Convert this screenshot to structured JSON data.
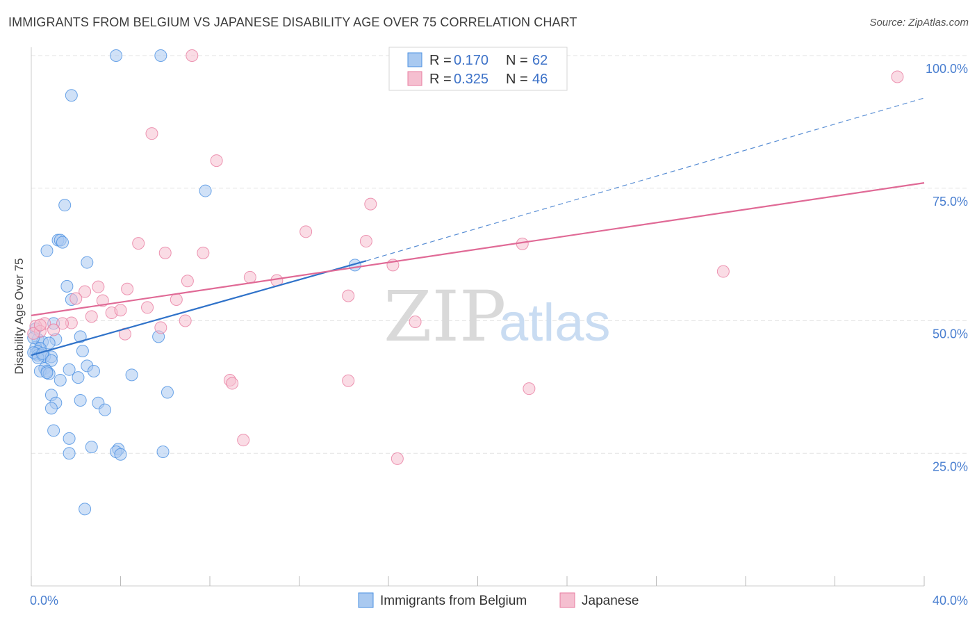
{
  "title": "IMMIGRANTS FROM BELGIUM VS JAPANESE DISABILITY AGE OVER 75 CORRELATION CHART",
  "source": "Source: ZipAtlas.com",
  "watermark": {
    "zip": "ZIP",
    "atlas": "atlas"
  },
  "legend": {
    "rows": [
      {
        "r_label": "R =",
        "r_value": "0.170",
        "n_label": "N =",
        "n_value": "62"
      },
      {
        "r_label": "R =",
        "r_value": "0.325",
        "n_label": "N =",
        "n_value": "46"
      }
    ]
  },
  "bottom_legend": [
    "Immigrants from Belgium",
    "Japanese"
  ],
  "colors": {
    "blue": "#4a90e2",
    "blue_fill": "#a9c9f0",
    "blue_line": "#2f72c9",
    "pink": "#e87ca0",
    "pink_fill": "#f5bfd0",
    "pink_line": "#e06a96",
    "tick_text": "#4a7fd0",
    "grid": "#e3e3e3"
  },
  "chart_data": {
    "type": "scatter",
    "title": "IMMIGRANTS FROM BELGIUM VS JAPANESE DISABILITY AGE OVER 75 CORRELATION CHART",
    "xlabel": "",
    "ylabel": "Disability Age Over 75",
    "xlim": [
      0,
      40
    ],
    "ylim": [
      0,
      100
    ],
    "x_tick_labels": [
      "0.0%",
      "40.0%"
    ],
    "y_ticks": [
      25,
      50,
      75,
      100
    ],
    "y_tick_labels": [
      "25.0%",
      "50.0%",
      "75.0%",
      "100.0%"
    ],
    "grid": true,
    "legend_position": "top-center",
    "series": [
      {
        "name": "Immigrants from Belgium",
        "color": "#4a90e2",
        "trend": {
          "x": [
            0,
            15
          ],
          "y": [
            43.5,
            61.3
          ],
          "dashed_extension_to": [
            40,
            92
          ]
        },
        "points": [
          [
            3.8,
            100
          ],
          [
            5.8,
            100
          ],
          [
            1.8,
            92.5
          ],
          [
            7.8,
            74.5
          ],
          [
            1.5,
            71.8
          ],
          [
            1.2,
            65.2
          ],
          [
            1.3,
            65.2
          ],
          [
            1.4,
            64.8
          ],
          [
            0.7,
            63.2
          ],
          [
            2.5,
            61.0
          ],
          [
            14.5,
            60.5
          ],
          [
            1.6,
            56.5
          ],
          [
            1.8,
            54.0
          ],
          [
            1.0,
            49.5
          ],
          [
            2.2,
            47.0
          ],
          [
            1.1,
            46.5
          ],
          [
            0.3,
            46.5
          ],
          [
            0.5,
            46.0
          ],
          [
            0.8,
            45.8
          ],
          [
            0.2,
            45.0
          ],
          [
            0.4,
            44.8
          ],
          [
            0.3,
            44.2
          ],
          [
            0.2,
            43.8
          ],
          [
            0.3,
            43.5
          ],
          [
            0.5,
            43.5
          ],
          [
            0.6,
            43.3
          ],
          [
            0.9,
            43.2
          ],
          [
            2.3,
            44.3
          ],
          [
            5.7,
            47.0
          ],
          [
            0.9,
            42.5
          ],
          [
            0.6,
            41.0
          ],
          [
            0.7,
            40.5
          ],
          [
            2.5,
            41.5
          ],
          [
            1.7,
            40.8
          ],
          [
            2.8,
            40.5
          ],
          [
            0.4,
            40.5
          ],
          [
            0.8,
            40.0
          ],
          [
            0.7,
            40.2
          ],
          [
            4.5,
            39.8
          ],
          [
            2.1,
            39.3
          ],
          [
            1.3,
            38.8
          ],
          [
            6.1,
            36.5
          ],
          [
            0.9,
            36.0
          ],
          [
            2.2,
            35.0
          ],
          [
            3.0,
            34.5
          ],
          [
            1.1,
            34.5
          ],
          [
            0.9,
            33.5
          ],
          [
            3.3,
            33.2
          ],
          [
            1.0,
            29.3
          ],
          [
            1.7,
            27.8
          ],
          [
            2.7,
            26.2
          ],
          [
            3.9,
            25.8
          ],
          [
            3.8,
            25.3
          ],
          [
            4.0,
            24.8
          ],
          [
            1.7,
            25.0
          ],
          [
            5.9,
            25.3
          ],
          [
            2.4,
            14.5
          ],
          [
            0.2,
            48.5
          ],
          [
            0.1,
            44.0
          ],
          [
            0.3,
            43.0
          ],
          [
            0.1,
            46.8
          ],
          [
            0.5,
            43.8
          ]
        ]
      },
      {
        "name": "Japanese",
        "color": "#e87ca0",
        "trend": {
          "x": [
            0,
            40
          ],
          "y": [
            51,
            76
          ]
        },
        "points": [
          [
            7.2,
            100
          ],
          [
            23.5,
            100
          ],
          [
            38.8,
            96
          ],
          [
            5.4,
            85.3
          ],
          [
            8.3,
            80.2
          ],
          [
            15.2,
            72.0
          ],
          [
            12.3,
            66.8
          ],
          [
            15.0,
            65.0
          ],
          [
            22.0,
            64.5
          ],
          [
            4.8,
            64.6
          ],
          [
            6.0,
            62.8
          ],
          [
            7.7,
            62.8
          ],
          [
            16.2,
            60.5
          ],
          [
            31.0,
            59.3
          ],
          [
            9.8,
            58.2
          ],
          [
            11.0,
            57.6
          ],
          [
            7.0,
            57.5
          ],
          [
            3.0,
            56.4
          ],
          [
            4.3,
            56.0
          ],
          [
            2.4,
            55.5
          ],
          [
            14.2,
            54.7
          ],
          [
            2.0,
            54.2
          ],
          [
            3.2,
            53.8
          ],
          [
            6.5,
            54.0
          ],
          [
            5.2,
            52.5
          ],
          [
            3.6,
            51.5
          ],
          [
            4.0,
            52.0
          ],
          [
            2.7,
            50.8
          ],
          [
            6.9,
            50.0
          ],
          [
            17.2,
            49.8
          ],
          [
            1.8,
            49.6
          ],
          [
            0.6,
            49.5
          ],
          [
            1.4,
            49.5
          ],
          [
            0.2,
            49.0
          ],
          [
            0.4,
            48.0
          ],
          [
            1.0,
            48.3
          ],
          [
            0.1,
            47.6
          ],
          [
            5.8,
            48.7
          ],
          [
            4.2,
            47.5
          ],
          [
            0.4,
            49.2
          ],
          [
            8.9,
            38.8
          ],
          [
            9.0,
            38.2
          ],
          [
            14.2,
            38.7
          ],
          [
            22.3,
            37.2
          ],
          [
            9.5,
            27.5
          ],
          [
            16.4,
            24.0
          ]
        ]
      }
    ]
  }
}
